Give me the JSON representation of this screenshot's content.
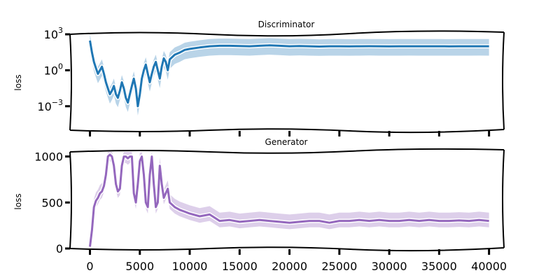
{
  "chart_data": [
    {
      "type": "line",
      "title": "Discriminator",
      "ylabel": "loss",
      "xlabel": "",
      "yscale": "log",
      "ylim": [
        1e-05,
        1000
      ],
      "xlim": [
        -2000,
        41500
      ],
      "yticks": [
        {
          "value": 1000,
          "base": "10",
          "exp": "3"
        },
        {
          "value": 1,
          "base": "10",
          "exp": "0"
        },
        {
          "value": 0.001,
          "base": "10",
          "exp": "−3"
        }
      ],
      "xticks": [
        0,
        5000,
        10000,
        15000,
        20000,
        25000,
        30000,
        35000,
        40000
      ],
      "show_xtick_labels": false,
      "color": "#1f77b4",
      "band_color": "#b9d4e8",
      "series": [
        {
          "x": [
            0,
            200,
            400,
            600,
            800,
            1000,
            1200,
            1400,
            1600,
            1800,
            2000,
            2200,
            2400,
            2600,
            2800,
            3000,
            3200,
            3400,
            3600,
            3800,
            4000,
            4200,
            4400,
            4600,
            4800,
            5000,
            5200,
            5400,
            5600,
            5800,
            6000,
            6200,
            6400,
            6600,
            6800,
            7000,
            7200,
            7400,
            7600,
            7800,
            8000,
            8500,
            9000,
            9500,
            10000,
            11000,
            12000,
            13000,
            14000,
            15000,
            16000,
            17000,
            18000,
            19000,
            20000,
            21000,
            22000,
            23000,
            24000,
            25000,
            26000,
            27000,
            28000,
            29000,
            30000,
            31000,
            32000,
            33000,
            34000,
            35000,
            36000,
            37000,
            38000,
            39000,
            40000
          ],
          "y": [
            300,
            30,
            5,
            1.5,
            0.5,
            1,
            2,
            0.5,
            0.1,
            0.03,
            0.01,
            0.02,
            0.05,
            0.01,
            0.005,
            0.02,
            0.1,
            0.03,
            0.005,
            0.002,
            0.01,
            0.05,
            0.2,
            0.03,
            0.001,
            0.01,
            0.2,
            1,
            3,
            0.5,
            0.1,
            0.5,
            2,
            5,
            1,
            0.2,
            2,
            10,
            5,
            1,
            8,
            20,
            30,
            50,
            60,
            80,
            100,
            110,
            110,
            105,
            100,
            110,
            120,
            110,
            100,
            105,
            100,
            95,
            100,
            100,
            98,
            100,
            102,
            100,
            99,
            100,
            101,
            100,
            100,
            100,
            99,
            100,
            100,
            101,
            100
          ]
        }
      ]
    },
    {
      "type": "line",
      "title": "Generator",
      "ylabel": "loss",
      "xlabel": "",
      "yscale": "linear",
      "ylim": [
        0,
        1050
      ],
      "xlim": [
        -2000,
        41500
      ],
      "yticks": [
        0,
        500,
        1000
      ],
      "xticks": [
        0,
        5000,
        10000,
        15000,
        20000,
        25000,
        30000,
        35000,
        40000
      ],
      "show_xtick_labels": true,
      "color": "#9467bd",
      "band_color": "#ddcfea",
      "series": [
        {
          "x": [
            0,
            200,
            400,
            600,
            800,
            1000,
            1200,
            1400,
            1600,
            1800,
            2000,
            2200,
            2400,
            2600,
            2800,
            3000,
            3200,
            3400,
            3600,
            3800,
            4000,
            4200,
            4400,
            4600,
            4800,
            5000,
            5200,
            5400,
            5600,
            5800,
            6000,
            6200,
            6400,
            6600,
            6800,
            7000,
            7200,
            7400,
            7600,
            7800,
            8000,
            8500,
            9000,
            9500,
            10000,
            11000,
            12000,
            13000,
            14000,
            15000,
            16000,
            17000,
            18000,
            19000,
            20000,
            21000,
            22000,
            23000,
            24000,
            25000,
            26000,
            27000,
            28000,
            29000,
            30000,
            31000,
            32000,
            33000,
            34000,
            35000,
            36000,
            37000,
            38000,
            39000,
            40000
          ],
          "y": [
            20,
            200,
            450,
            520,
            550,
            600,
            620,
            680,
            800,
            1000,
            1020,
            1000,
            900,
            700,
            620,
            650,
            900,
            1000,
            1000,
            980,
            1000,
            1000,
            600,
            500,
            700,
            950,
            1000,
            800,
            500,
            450,
            800,
            1000,
            700,
            450,
            500,
            900,
            700,
            550,
            600,
            650,
            500,
            450,
            420,
            400,
            380,
            350,
            370,
            300,
            310,
            290,
            300,
            310,
            300,
            290,
            280,
            290,
            300,
            300,
            280,
            300,
            300,
            310,
            300,
            310,
            300,
            300,
            310,
            300,
            310,
            300,
            300,
            305,
            300,
            310,
            300
          ]
        }
      ]
    }
  ]
}
